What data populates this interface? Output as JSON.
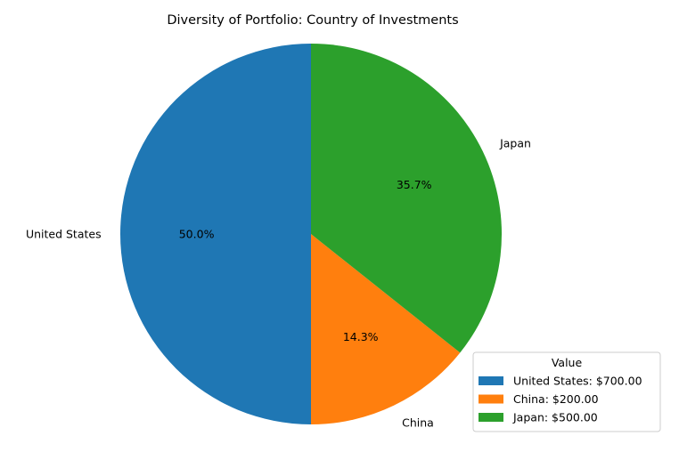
{
  "chart_data": {
    "type": "pie",
    "title": "Diversity of Portfolio: Country of Investments",
    "categories": [
      "United States",
      "China",
      "Japan"
    ],
    "values": [
      700,
      200,
      500
    ],
    "percent_labels": [
      "50.0%",
      "14.3%",
      "35.7%"
    ],
    "colors": [
      "#1f77b4",
      "#ff7f0e",
      "#2ca02c"
    ],
    "start_angle_deg": 90,
    "direction": "counterclockwise",
    "legend": {
      "title": "Value",
      "placement": "lower-right",
      "entries": [
        "United States: $700.00",
        "China: $200.00",
        "Japan: $500.00"
      ]
    }
  }
}
